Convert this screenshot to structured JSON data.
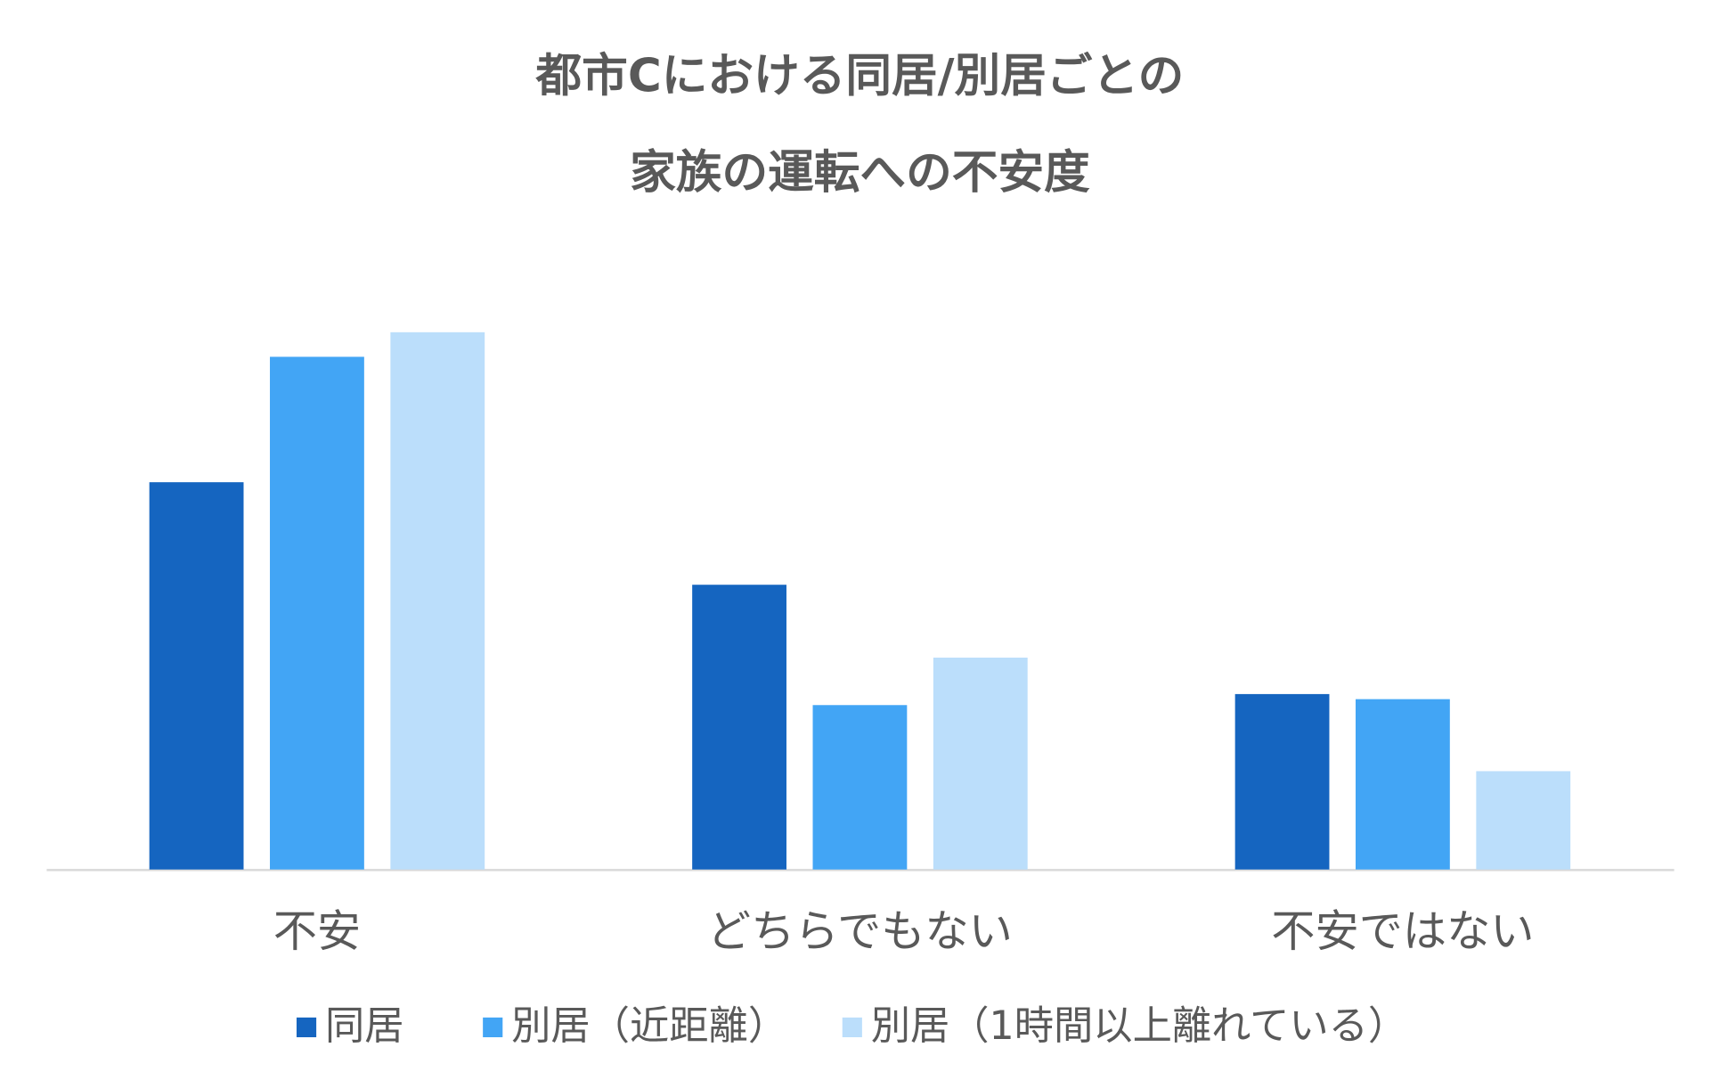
{
  "chart_data": {
    "type": "bar",
    "title": [
      "都市Cにおける同居/別居ごとの",
      "家族の運転への不安度"
    ],
    "categories": [
      "不安",
      "どちらでもない",
      "不安ではない"
    ],
    "series": [
      {
        "name": "同居",
        "color": "#1565c0",
        "values": [
          45.7,
          33.6,
          20.7
        ]
      },
      {
        "name": "別居（近距離）",
        "color": "#42a5f5",
        "values": [
          60.5,
          19.4,
          20.1
        ]
      },
      {
        "name": "別居（1時間以上離れている）",
        "color": "#bbdefb",
        "values": [
          63.4,
          25.0,
          11.6
        ]
      }
    ],
    "ylim": [
      0,
      70
    ]
  }
}
